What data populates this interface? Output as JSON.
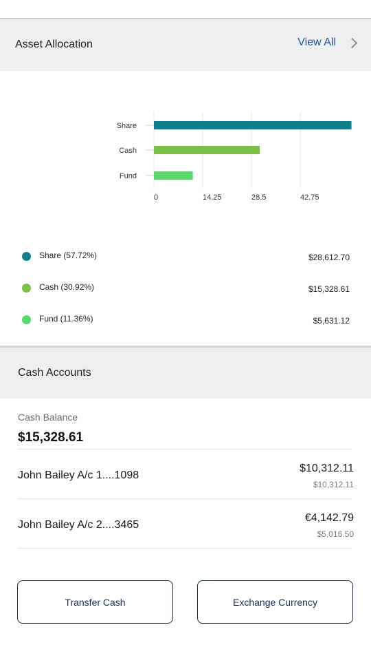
{
  "asset_allocation": {
    "title": "Asset Allocation",
    "view_all": "View All"
  },
  "chart_data": {
    "type": "bar",
    "orientation": "horizontal",
    "categories": [
      "Share",
      "Cash",
      "Fund"
    ],
    "values": [
      57.72,
      30.92,
      11.36
    ],
    "xticks": [
      "0",
      "14.25",
      "28.5",
      "42.75"
    ],
    "xlim": [
      0,
      57
    ],
    "grid": true,
    "colors": [
      "#0f7f8c",
      "#7bbf43",
      "#58d868"
    ]
  },
  "legend": [
    {
      "name": "Share (57.72%)",
      "amount": "$28,612.70",
      "color": "#0f7f8c"
    },
    {
      "name": "Cash (30.92%)",
      "amount": "$15,328.61",
      "color": "#7bbf43"
    },
    {
      "name": "Fund (11.36%)",
      "amount": "$5,631.12",
      "color": "#58d868"
    }
  ],
  "cash_accounts": {
    "title": "Cash Accounts",
    "balance_label": "Cash Balance",
    "balance_value": "$15,328.61",
    "accounts": [
      {
        "name": "John Bailey A/c 1....1098",
        "primary": "$10,312.11",
        "secondary": "$10,312.11"
      },
      {
        "name": "John Bailey A/c 2....3465",
        "primary": "€4,142.79",
        "secondary": "$5,016.50"
      }
    ]
  },
  "buttons": {
    "transfer": "Transfer Cash",
    "exchange": "Exchange Currency"
  }
}
